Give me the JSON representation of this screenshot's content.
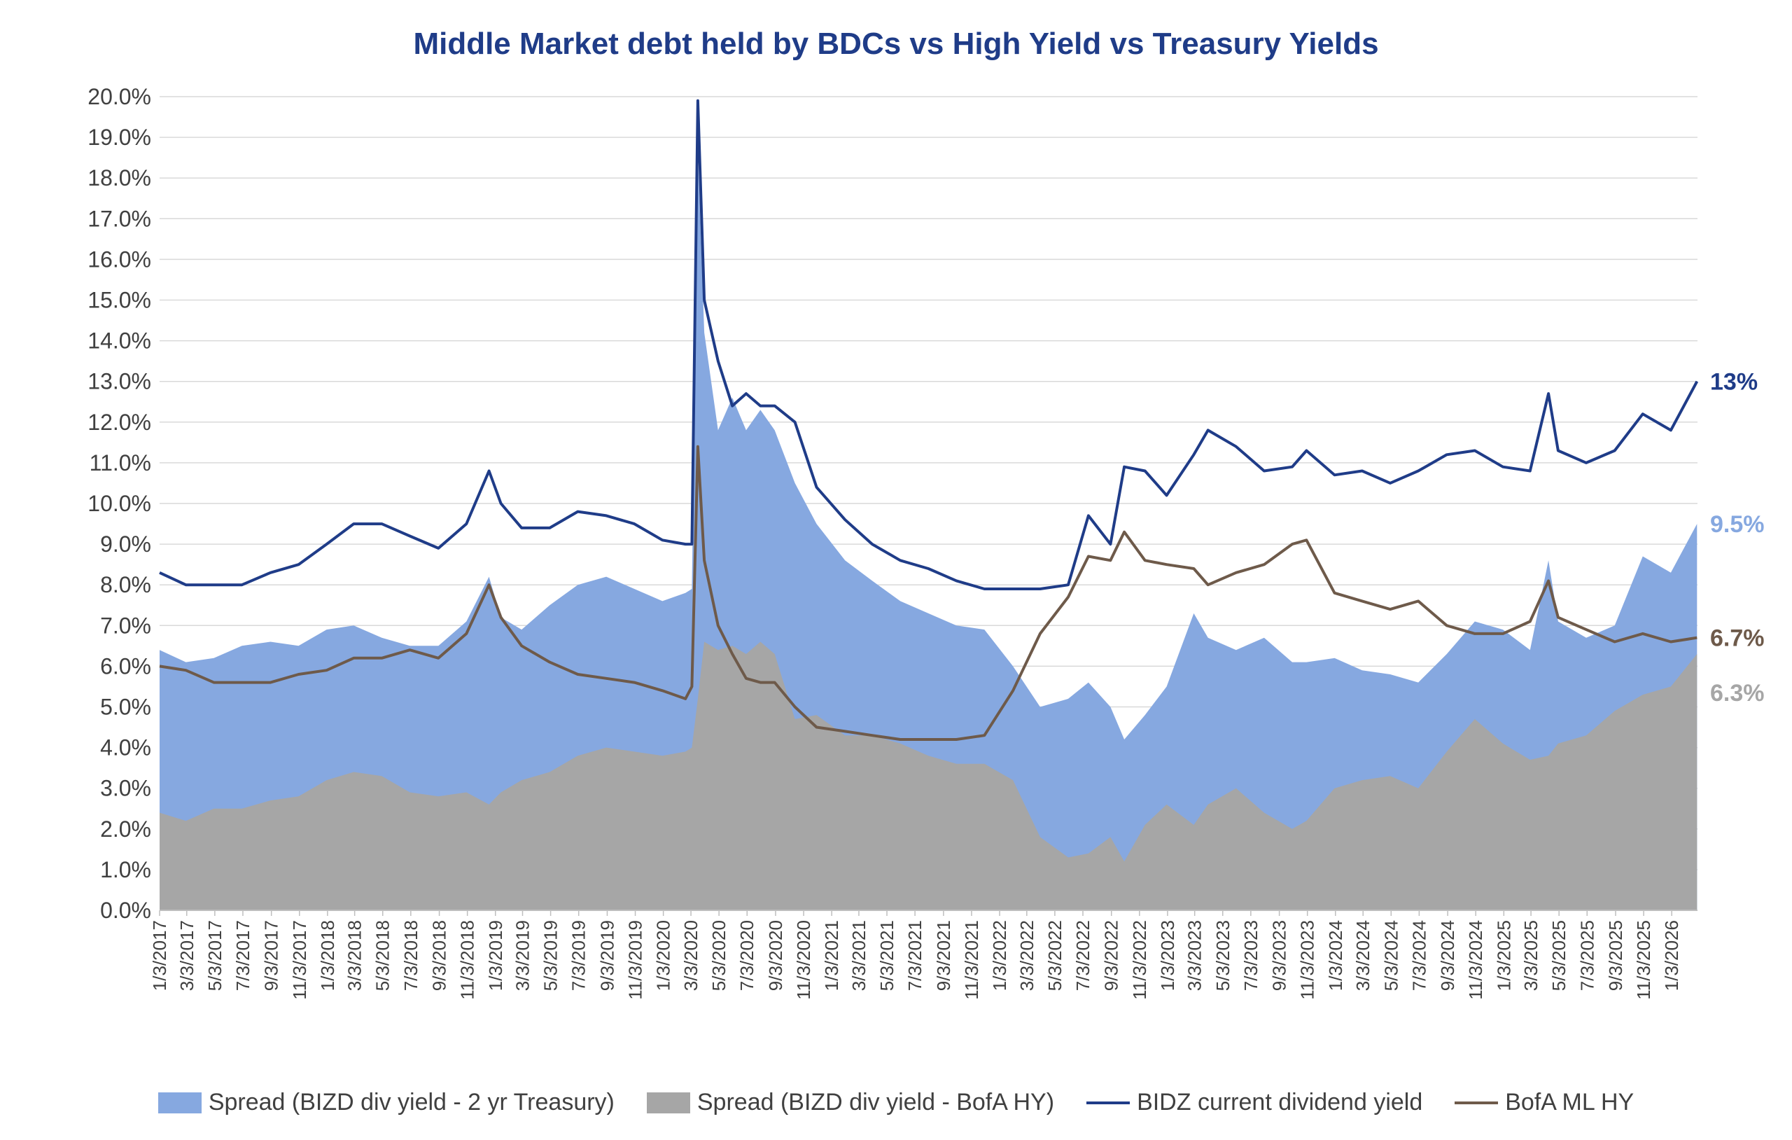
{
  "chart_data": {
    "type": "area",
    "title": "Middle Market debt held by BDCs vs High Yield vs Treasury Yields",
    "xlabel": "",
    "ylabel": "",
    "ylim": [
      0,
      20
    ],
    "y_ticks": [
      "0.0%",
      "1.0%",
      "2.0%",
      "3.0%",
      "4.0%",
      "5.0%",
      "6.0%",
      "7.0%",
      "8.0%",
      "9.0%",
      "10.0%",
      "11.0%",
      "12.0%",
      "13.0%",
      "14.0%",
      "15.0%",
      "16.0%",
      "17.0%",
      "18.0%",
      "19.0%",
      "20.0%"
    ],
    "x_ticks": [
      "1/3/2017",
      "3/3/2017",
      "5/3/2017",
      "7/3/2017",
      "9/3/2017",
      "11/3/2017",
      "1/3/2018",
      "3/3/2018",
      "5/3/2018",
      "7/3/2018",
      "9/3/2018",
      "11/3/2018",
      "1/3/2019",
      "3/3/2019",
      "5/3/2019",
      "7/3/2019",
      "9/3/2019",
      "11/3/2019",
      "1/3/2020",
      "3/3/2020",
      "5/3/2020",
      "7/3/2020",
      "9/3/2020",
      "11/3/2020",
      "1/3/2021",
      "3/3/2021",
      "5/3/2021",
      "7/3/2021",
      "9/3/2021",
      "11/3/2021",
      "1/3/2022",
      "3/3/2022",
      "5/3/2022",
      "7/3/2022",
      "9/3/2022",
      "11/3/2022",
      "1/3/2023",
      "3/3/2023",
      "5/3/2023",
      "7/3/2023",
      "9/3/2023",
      "11/3/2023",
      "1/3/2024",
      "3/3/2024",
      "5/3/2024",
      "7/3/2024",
      "9/3/2024",
      "11/3/2024",
      "1/3/2025",
      "3/3/2025",
      "5/3/2025",
      "7/3/2025",
      "9/3/2025",
      "11/3/2025",
      "1/3/2026"
    ],
    "x": [
      "2017-01-03",
      "2017-03-01",
      "2017-05-01",
      "2017-07-01",
      "2017-09-01",
      "2017-11-01",
      "2018-01-01",
      "2018-03-01",
      "2018-05-01",
      "2018-07-01",
      "2018-09-01",
      "2018-11-01",
      "2018-12-20",
      "2019-01-15",
      "2019-03-01",
      "2019-05-01",
      "2019-07-01",
      "2019-09-01",
      "2019-11-01",
      "2020-01-01",
      "2020-02-20",
      "2020-03-05",
      "2020-03-18",
      "2020-04-01",
      "2020-05-01",
      "2020-06-01",
      "2020-07-01",
      "2020-08-01",
      "2020-09-01",
      "2020-10-15",
      "2020-12-01",
      "2021-02-01",
      "2021-04-01",
      "2021-06-01",
      "2021-08-01",
      "2021-10-01",
      "2021-12-01",
      "2022-02-01",
      "2022-04-01",
      "2022-06-01",
      "2022-07-15",
      "2022-09-01",
      "2022-10-01",
      "2022-11-15",
      "2023-01-01",
      "2023-03-01",
      "2023-04-01",
      "2023-06-01",
      "2023-08-01",
      "2023-10-01",
      "2023-11-01",
      "2024-01-01",
      "2024-03-01",
      "2024-05-01",
      "2024-07-01",
      "2024-09-01",
      "2024-11-01",
      "2025-01-01",
      "2025-03-01",
      "2025-04-10",
      "2025-05-01",
      "2025-07-01",
      "2025-09-01",
      "2025-11-01",
      "2026-01-01",
      "2026-02-27"
    ],
    "series": [
      {
        "name": "Spread (BIZD div yield - 2 yr Treasury)",
        "kind": "area",
        "color": "#86a8e0",
        "values": [
          6.4,
          6.1,
          6.2,
          6.5,
          6.6,
          6.5,
          6.9,
          7.0,
          6.7,
          6.5,
          6.5,
          7.1,
          8.2,
          7.2,
          6.9,
          7.5,
          8.0,
          8.2,
          7.9,
          7.6,
          7.8,
          7.9,
          18.6,
          14.2,
          11.8,
          12.6,
          11.8,
          12.3,
          11.8,
          10.5,
          9.5,
          8.6,
          8.1,
          7.6,
          7.3,
          7.0,
          6.9,
          6.0,
          5.0,
          5.2,
          5.6,
          5.0,
          4.2,
          4.8,
          5.5,
          7.3,
          6.7,
          6.4,
          6.7,
          6.1,
          6.1,
          6.2,
          5.9,
          5.8,
          5.6,
          6.3,
          7.1,
          6.9,
          6.4,
          8.6,
          7.1,
          6.7,
          7.0,
          8.7,
          8.3,
          9.5
        ]
      },
      {
        "name": "Spread (BIZD div yield - BofA HY)",
        "kind": "area",
        "color": "#a6a6a6",
        "values": [
          2.4,
          2.2,
          2.5,
          2.5,
          2.7,
          2.8,
          3.2,
          3.4,
          3.3,
          2.9,
          2.8,
          2.9,
          2.6,
          2.9,
          3.2,
          3.4,
          3.8,
          4.0,
          3.9,
          3.8,
          3.9,
          4.0,
          5.2,
          6.6,
          6.4,
          6.5,
          6.3,
          6.6,
          6.3,
          4.7,
          4.8,
          4.3,
          4.3,
          4.1,
          3.8,
          3.6,
          3.6,
          3.2,
          1.8,
          1.3,
          1.4,
          1.8,
          1.2,
          2.1,
          2.6,
          2.1,
          2.6,
          3.0,
          2.4,
          2.0,
          2.2,
          3.0,
          3.2,
          3.3,
          3.0,
          3.9,
          4.7,
          4.1,
          3.7,
          3.8,
          4.1,
          4.3,
          4.9,
          5.3,
          5.5,
          6.3
        ]
      },
      {
        "name": "BIDZ current dividend yield",
        "kind": "line",
        "color": "#1f3c88",
        "values": [
          8.3,
          8.0,
          8.0,
          8.0,
          8.3,
          8.5,
          9.0,
          9.5,
          9.5,
          9.2,
          8.9,
          9.5,
          10.8,
          10.0,
          9.4,
          9.4,
          9.8,
          9.7,
          9.5,
          9.1,
          9.0,
          9.0,
          19.9,
          15.0,
          13.5,
          12.4,
          12.7,
          12.4,
          12.4,
          12.0,
          10.4,
          9.6,
          9.0,
          8.6,
          8.4,
          8.1,
          7.9,
          7.9,
          7.9,
          8.0,
          9.7,
          9.0,
          10.9,
          10.8,
          10.2,
          11.2,
          11.8,
          11.4,
          10.8,
          10.9,
          11.3,
          10.7,
          10.8,
          10.5,
          10.8,
          11.2,
          11.3,
          10.9,
          10.8,
          12.7,
          11.3,
          11.0,
          11.3,
          12.2,
          11.8,
          13.0
        ]
      },
      {
        "name": "BofA ML HY",
        "kind": "line",
        "color": "#6e5a4a",
        "values": [
          6.0,
          5.9,
          5.6,
          5.6,
          5.6,
          5.8,
          5.9,
          6.2,
          6.2,
          6.4,
          6.2,
          6.8,
          8.0,
          7.2,
          6.5,
          6.1,
          5.8,
          5.7,
          5.6,
          5.4,
          5.2,
          5.5,
          11.4,
          8.6,
          7.0,
          6.3,
          5.7,
          5.6,
          5.6,
          5.0,
          4.5,
          4.4,
          4.3,
          4.2,
          4.2,
          4.2,
          4.3,
          5.4,
          6.8,
          7.7,
          8.7,
          8.6,
          9.3,
          8.6,
          8.5,
          8.4,
          8.0,
          8.3,
          8.5,
          9.0,
          9.1,
          7.8,
          7.6,
          7.4,
          7.6,
          7.0,
          6.8,
          6.8,
          7.1,
          8.1,
          7.2,
          6.9,
          6.6,
          6.8,
          6.6,
          6.7
        ]
      }
    ],
    "end_labels": [
      {
        "text": "13%",
        "series": 2,
        "color": "#1f3c88"
      },
      {
        "text": "9.5%",
        "series": 0,
        "color": "#86a8e0"
      },
      {
        "text": "6.7%",
        "series": 3,
        "color": "#6e5a4a"
      },
      {
        "text": "6.3%",
        "series": 1,
        "color": "#a6a6a6"
      }
    ],
    "grid": true,
    "legend": "bottom"
  },
  "legend": [
    {
      "label": "Spread (BIZD div yield - 2 yr Treasury)",
      "kind": "box",
      "color": "#86a8e0"
    },
    {
      "label": "Spread (BIZD div yield - BofA HY)",
      "kind": "box",
      "color": "#a6a6a6"
    },
    {
      "label": "BIDZ current dividend yield",
      "kind": "line",
      "color": "#1f3c88"
    },
    {
      "label": "BofA ML HY",
      "kind": "line",
      "color": "#6e5a4a"
    }
  ]
}
